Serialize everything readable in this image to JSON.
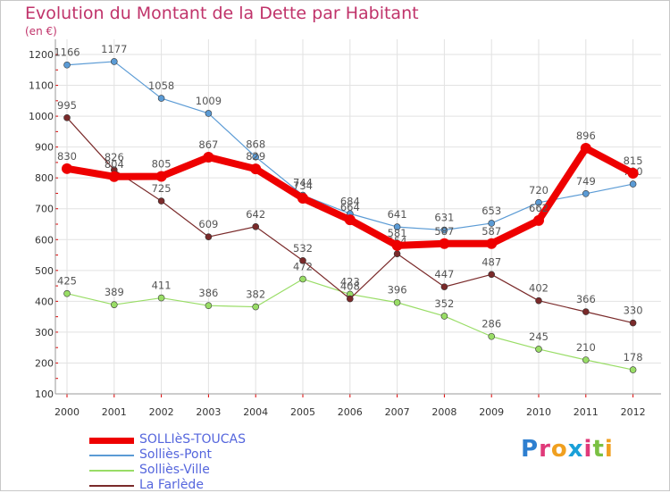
{
  "title": "Evolution du Montant de la Dette par Habitant",
  "unit": "(en €)",
  "logo_text": "Proxiti",
  "chart_data": {
    "type": "line",
    "title": "Evolution du Montant de la Dette par Habitant",
    "ylabel": "(en €)",
    "x": [
      "2000",
      "2001",
      "2002",
      "2003",
      "2004",
      "2005",
      "2006",
      "2007",
      "2008",
      "2009",
      "2010",
      "2011",
      "2012"
    ],
    "ylim": [
      100,
      1200
    ],
    "yticks": [
      100,
      200,
      300,
      400,
      500,
      600,
      700,
      800,
      900,
      1000,
      1100,
      1200
    ],
    "grid": true,
    "legend": "bottom-left",
    "series": [
      {
        "name": "SOLLIèS-TOUCAS",
        "color": "#ee0000",
        "values": [
          830,
          804,
          805,
          867,
          829,
          734,
          664,
          581,
          587,
          587,
          662,
          896,
          815
        ]
      },
      {
        "name": "Solliès-Pont",
        "color": "#5b9bd5",
        "values": [
          1166,
          1177,
          1058,
          1009,
          868,
          744,
          684,
          641,
          631,
          653,
          720,
          749,
          780
        ]
      },
      {
        "name": "Solliès-Ville",
        "color": "#99dd66",
        "values": [
          425,
          389,
          411,
          386,
          382,
          472,
          423,
          396,
          352,
          286,
          245,
          210,
          178
        ]
      },
      {
        "name": "La Farlède",
        "color": "#7a2a2a",
        "values": [
          995,
          826,
          725,
          609,
          642,
          532,
          408,
          554,
          447,
          487,
          402,
          366,
          330
        ]
      }
    ]
  }
}
